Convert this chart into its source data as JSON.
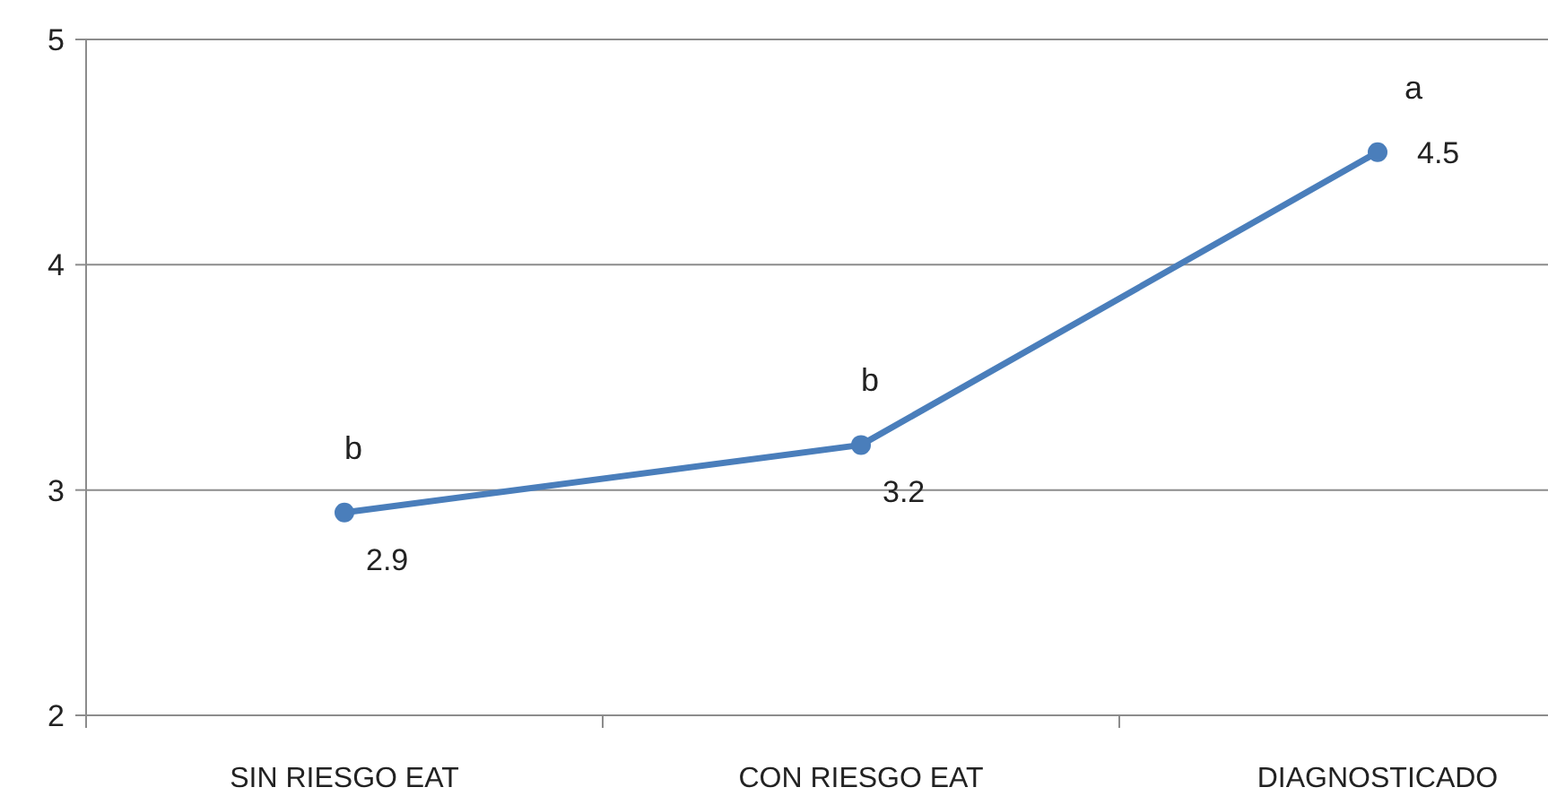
{
  "chart_data": {
    "type": "line",
    "categories": [
      "SIN RIESGO EAT",
      "CON RIESGO EAT",
      "DIAGNOSTICADO"
    ],
    "series": [
      {
        "color": "#4a7ebb",
        "values": [
          2.9,
          3.2,
          4.5
        ]
      }
    ],
    "ylim": [
      2,
      5
    ],
    "yticks": [
      2,
      3,
      4,
      5
    ],
    "grid": "y",
    "marker": "circle",
    "line_style": "solid",
    "data_labels": true,
    "annotations": [
      {
        "text": "b",
        "x": "SIN RIESGO EAT",
        "y": 2.9
      },
      {
        "text": "b",
        "x": "CON RIESGO EAT",
        "y": 3.2
      },
      {
        "text": "a",
        "x": "DIAGNOSTICADO",
        "y": 4.5
      }
    ]
  }
}
